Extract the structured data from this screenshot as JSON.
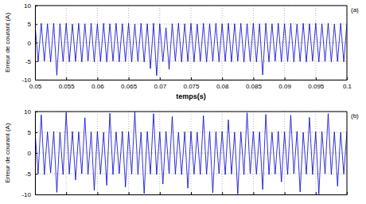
{
  "chart_data": [
    {
      "type": "line",
      "xlabel": "temps(s)",
      "ylabel": "Erreur de courant (A)",
      "annotations": [
        "(a)"
      ],
      "grid": true,
      "xlim": [
        0.05,
        0.1
      ],
      "ylim": [
        -10,
        10
      ],
      "xticks": [
        0.05,
        0.055,
        0.06,
        0.065,
        0.07,
        0.075,
        0.08,
        0.085,
        0.09,
        0.095,
        0.1
      ],
      "yticks": [
        -10,
        -5,
        0,
        5,
        10
      ],
      "x": [
        0.05,
        0.0505,
        0.051,
        0.0515,
        0.052,
        0.0525,
        0.053,
        0.0535,
        0.054,
        0.0545,
        0.055,
        0.0555,
        0.056,
        0.0565,
        0.057,
        0.0575,
        0.058,
        0.0585,
        0.059,
        0.0595,
        0.06,
        0.0605,
        0.061,
        0.0615,
        0.062,
        0.0625,
        0.063,
        0.0635,
        0.064,
        0.0645,
        0.065,
        0.0655,
        0.066,
        0.0665,
        0.067,
        0.0675,
        0.068,
        0.0685,
        0.069,
        0.0695,
        0.07,
        0.0705,
        0.071,
        0.0715,
        0.072,
        0.0725,
        0.073,
        0.0735,
        0.074,
        0.0745,
        0.075,
        0.0755,
        0.076,
        0.0765,
        0.077,
        0.0775,
        0.078,
        0.0785,
        0.079,
        0.0795,
        0.08,
        0.0805,
        0.081,
        0.0815,
        0.082,
        0.0825,
        0.083,
        0.0835,
        0.084,
        0.0845,
        0.085,
        0.0855,
        0.086,
        0.0865,
        0.087,
        0.0875,
        0.088,
        0.0885,
        0.089,
        0.0895,
        0.09,
        0.0905,
        0.091,
        0.0915,
        0.092,
        0.0925,
        0.093,
        0.0935,
        0.094,
        0.0945,
        0.095,
        0.0955,
        0.096,
        0.0965,
        0.097,
        0.0975,
        0.098,
        0.0985,
        0.099,
        0.0995,
        0.1
      ],
      "series": [
        {
          "color": "#0000cc",
          "values": [
            5.1,
            -5.2,
            5.2,
            -5.0,
            5.1,
            -5.2,
            5.2,
            -8.8,
            5.1,
            -5.1,
            5.2,
            -5.2,
            5.0,
            -5.1,
            5.2,
            -5.2,
            5.1,
            -5.0,
            5.2,
            -5.2,
            5.1,
            -5.1,
            5.2,
            -5.2,
            5.1,
            -5.0,
            5.2,
            -5.2,
            5.1,
            -5.1,
            5.2,
            -5.2,
            5.0,
            -5.1,
            5.2,
            -5.2,
            5.1,
            -7.0,
            5.2,
            -8.9,
            5.1,
            -5.1,
            4.0,
            -7.2,
            5.1,
            -5.0,
            5.2,
            -5.2,
            5.1,
            -5.1,
            5.2,
            -5.2,
            5.0,
            -5.1,
            5.2,
            -5.2,
            5.1,
            -5.0,
            5.2,
            -5.2,
            5.1,
            -5.1,
            5.2,
            -5.2,
            5.1,
            -5.0,
            5.2,
            -5.2,
            5.1,
            -5.1,
            5.2,
            -5.2,
            5.1,
            -8.7,
            5.2,
            -5.2,
            5.1,
            -5.0,
            5.2,
            -5.2,
            5.1,
            -5.1,
            5.2,
            -5.2,
            5.0,
            -5.1,
            5.2,
            -5.2,
            5.1,
            -5.0,
            5.2,
            -5.2,
            5.1,
            -5.1,
            5.2,
            -5.2,
            5.0,
            -5.1,
            5.2,
            -5.2,
            5.1
          ]
        }
      ]
    },
    {
      "type": "line",
      "ylabel": "Erreur de courant (A)",
      "annotations": [
        "(b)"
      ],
      "grid": true,
      "tick_labels": "y",
      "xlim": [
        0.05,
        0.1
      ],
      "ylim": [
        -10,
        10
      ],
      "xticks": [
        0.05,
        0.055,
        0.06,
        0.065,
        0.07,
        0.075,
        0.08,
        0.085,
        0.09,
        0.095,
        0.1
      ],
      "yticks": [
        -10,
        -5,
        0,
        5,
        10
      ],
      "x": [
        0.05,
        0.0505,
        0.051,
        0.0515,
        0.052,
        0.0525,
        0.053,
        0.0535,
        0.054,
        0.0545,
        0.055,
        0.0555,
        0.056,
        0.0565,
        0.057,
        0.0575,
        0.058,
        0.0585,
        0.059,
        0.0595,
        0.06,
        0.0605,
        0.061,
        0.0615,
        0.062,
        0.0625,
        0.063,
        0.0635,
        0.064,
        0.0645,
        0.065,
        0.0655,
        0.066,
        0.0665,
        0.067,
        0.0675,
        0.068,
        0.0685,
        0.069,
        0.0695,
        0.07,
        0.0705,
        0.071,
        0.0715,
        0.072,
        0.0725,
        0.073,
        0.0735,
        0.074,
        0.0745,
        0.075,
        0.0755,
        0.076,
        0.0765,
        0.077,
        0.0775,
        0.078,
        0.0785,
        0.079,
        0.0795,
        0.08,
        0.0805,
        0.081,
        0.0815,
        0.082,
        0.0825,
        0.083,
        0.0835,
        0.084,
        0.0845,
        0.085,
        0.0855,
        0.086,
        0.0865,
        0.087,
        0.0875,
        0.088,
        0.0885,
        0.089,
        0.0895,
        0.09,
        0.0905,
        0.091,
        0.0915,
        0.092,
        0.0925,
        0.093,
        0.0935,
        0.094,
        0.0945,
        0.095,
        0.0955,
        0.096,
        0.0965,
        0.097,
        0.0975,
        0.098,
        0.0985,
        0.099,
        0.0995,
        0.1
      ],
      "series": [
        {
          "color": "#0000cc",
          "values": [
            5.3,
            -5.1,
            9.2,
            -5.2,
            5.1,
            -4.8,
            5.2,
            -9.5,
            5.0,
            -5.2,
            9.8,
            -5.1,
            5.2,
            -6.5,
            5.1,
            -5.0,
            8.5,
            -5.2,
            5.1,
            -9.0,
            5.2,
            -5.1,
            5.0,
            -7.8,
            9.6,
            -5.2,
            5.1,
            -5.0,
            5.2,
            -8.2,
            5.1,
            -5.1,
            9.9,
            -5.2,
            5.0,
            -9.8,
            5.2,
            -5.1,
            9.5,
            -5.2,
            5.1,
            -7.5,
            5.2,
            -5.0,
            8.8,
            -5.1,
            5.0,
            -5.2,
            5.1,
            -8.5,
            5.2,
            -5.1,
            5.0,
            -5.2,
            9.0,
            -5.1,
            5.2,
            -9.6,
            5.1,
            -5.0,
            5.2,
            -5.2,
            8.0,
            -5.1,
            5.0,
            -9.9,
            5.1,
            -5.2,
            9.7,
            -5.0,
            5.2,
            -5.1,
            5.1,
            -8.8,
            9.3,
            -5.2,
            5.0,
            -5.1,
            5.2,
            -7.0,
            5.1,
            -5.2,
            9.1,
            -5.0,
            5.2,
            -9.4,
            5.0,
            -5.1,
            8.6,
            -5.2,
            5.1,
            -9.9,
            5.2,
            -5.0,
            9.5,
            -5.2,
            5.1,
            -8.0,
            5.0,
            -5.1,
            5.2
          ]
        }
      ]
    }
  ]
}
